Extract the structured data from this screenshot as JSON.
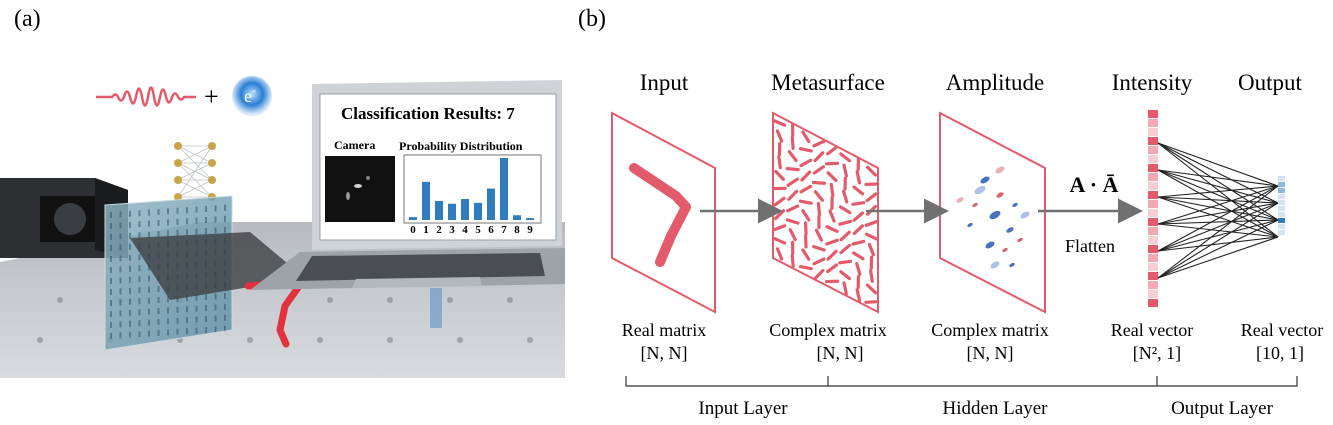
{
  "panel_a": {
    "label": "(a)",
    "electron_label": "e",
    "electron_sup": "-",
    "plus": "+",
    "screen": {
      "result_title": "Classification Results: 7",
      "camera_label": "Camera",
      "dist_title": "Probability Distribution",
      "digits": [
        "0",
        "1",
        "2",
        "3",
        "4",
        "5",
        "6",
        "7",
        "8",
        "9"
      ],
      "bar_values": [
        0.03,
        0.4,
        0.2,
        0.17,
        0.22,
        0.18,
        0.33,
        0.65,
        0.05,
        0.02
      ],
      "bar_color": "#2f7cbf"
    }
  },
  "panel_b": {
    "label": "(b)",
    "stages": [
      {
        "title": "Input",
        "type": "Real matrix",
        "dims": "[N, N]"
      },
      {
        "title": "Metasurface",
        "type": "Complex matrix",
        "dims": "[N, N]"
      },
      {
        "title": "Amplitude",
        "type": "Complex matrix",
        "dims": "[N, N]"
      },
      {
        "title": "Intensity",
        "type": "Real vector",
        "dims": "[N², 1]"
      },
      {
        "title": "Output",
        "type": "Real vector",
        "dims": "[10, 1]"
      }
    ],
    "operation": "A · Ā",
    "flatten": "Flatten",
    "layers": [
      "Input Layer",
      "Hidden Layer",
      "Output Layer"
    ],
    "accent": "#e35b6a",
    "output_accent": "#2f7cbf"
  }
}
